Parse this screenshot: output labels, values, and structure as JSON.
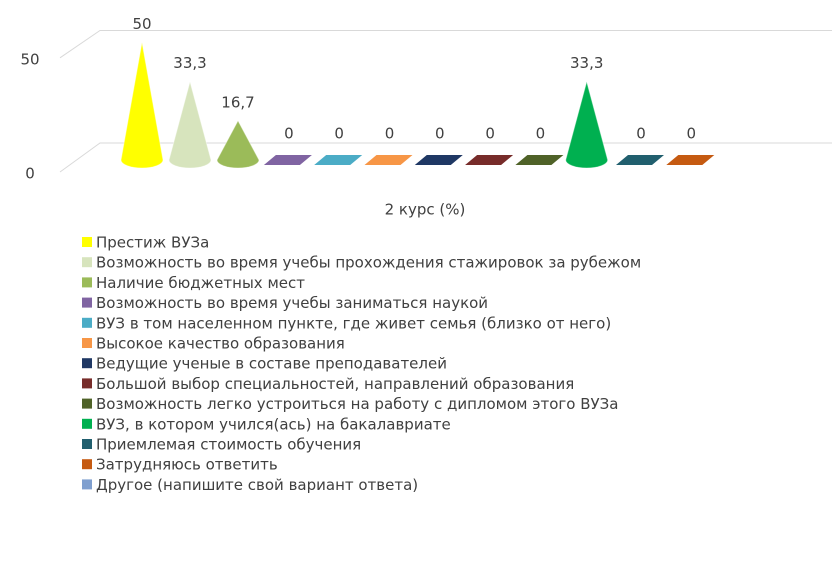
{
  "chart_data": {
    "type": "cone3d",
    "categories": [
      "2 курс (%)"
    ],
    "ylim": [
      0,
      60
    ],
    "yticks": [
      0,
      50
    ],
    "grid": true,
    "series": [
      {
        "name": "Престиж ВУЗа",
        "color": "#ffff00",
        "values": [
          50
        ]
      },
      {
        "name": "Возможность во время учебы прохождения стажировок за рубежом",
        "color": "#d7e4bd",
        "values": [
          33.3
        ],
        "value_labels": [
          "33,3"
        ]
      },
      {
        "name": "Наличие бюджетных мест",
        "color": "#9bbb59",
        "values": [
          16.7
        ],
        "value_labels": [
          "16,7"
        ]
      },
      {
        "name": "Возможность во время учебы заниматься наукой",
        "color": "#8064a2",
        "values": [
          0
        ]
      },
      {
        "name": "ВУЗ в том населенном пункте, где живет семья (близко от него)",
        "color": "#4bacc6",
        "values": [
          0
        ]
      },
      {
        "name": "Высокое качество образования",
        "color": "#f79646",
        "values": [
          0
        ]
      },
      {
        "name": "Ведущие ученые в составе преподавателей",
        "color": "#1f3864",
        "values": [
          0
        ]
      },
      {
        "name": "Большой выбор специальностей, направлений образования",
        "color": "#772c2a",
        "values": [
          0
        ]
      },
      {
        "name": "Возможность легко устроиться на работу с дипломом этого ВУЗа",
        "color": "#4f6228",
        "values": [
          0
        ]
      },
      {
        "name": "ВУЗ, в котором учился(ась) на бакалавриате",
        "color": "#00b050",
        "values": [
          33.3
        ],
        "value_labels": [
          "33,3"
        ]
      },
      {
        "name": "Приемлемая стоимость обучения",
        "color": "#215f6e",
        "values": [
          0
        ]
      },
      {
        "name": "Затрудняюсь ответить",
        "color": "#c55a11",
        "values": [
          0
        ]
      },
      {
        "name": "Другое (напишите свой вариант ответа)",
        "color": "#7f9fcf",
        "values": [
          null
        ]
      }
    ]
  }
}
